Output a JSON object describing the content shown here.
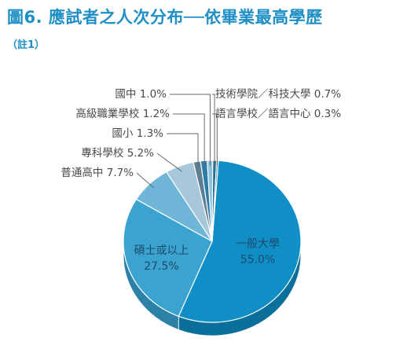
{
  "figure": {
    "title": "圖6. 應試者之人次分布──依畢業最高學歷",
    "note": "（註1）"
  },
  "chart_data": {
    "type": "pie",
    "title": "圖6. 應試者之人次分布──依畢業最高學歷",
    "note": "（註1）",
    "slices": [
      {
        "label": "一般大學",
        "value": 55.0,
        "display": "55.0%",
        "color": "#0f8fc6",
        "side": "#0a6f9b"
      },
      {
        "label": "碩士或以上",
        "value": 27.5,
        "display": "27.5%",
        "color": "#3aa3cf",
        "side": "#2b81a6"
      },
      {
        "label": "普通高中",
        "value": 7.7,
        "display": "7.7%",
        "color": "#6fb5d8",
        "side": "#5290ae"
      },
      {
        "label": "專科學校",
        "value": 5.2,
        "display": "5.2%",
        "color": "#a6c8da",
        "side": "#82a3b4"
      },
      {
        "label": "國小",
        "value": 1.3,
        "display": "1.3%",
        "color": "#5d7f94",
        "side": "#45606f"
      },
      {
        "label": "高級職業學校",
        "value": 1.2,
        "display": "1.2%",
        "color": "#2f7ca7",
        "side": "#225d7d"
      },
      {
        "label": "國中",
        "value": 1.0,
        "display": "1.0%",
        "color": "#8ec1dc",
        "side": "#6c98ae"
      },
      {
        "label": "技術學院／科技大學",
        "value": 0.7,
        "display": "0.7%",
        "color": "#1a6f99",
        "side": "#135274"
      },
      {
        "label": "語言學校／語言中心",
        "value": 0.3,
        "display": "0.3%",
        "color": "#0e5c86",
        "side": "#0a4463"
      }
    ]
  }
}
